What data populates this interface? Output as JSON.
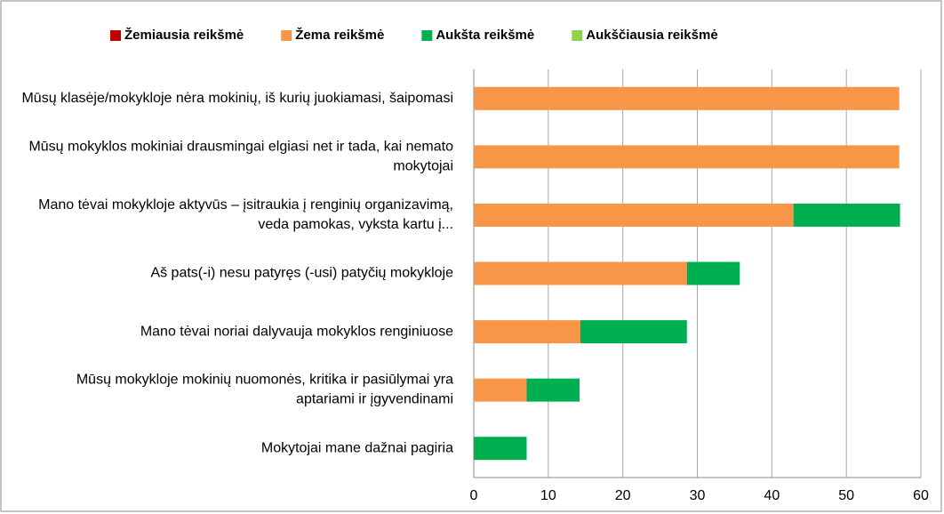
{
  "chart_data": {
    "type": "stacked-barh",
    "categories": [
      "Mūsų klasėje/mokykloje nėra mokinių,  iš kurių juokiamasi, šaipomasi",
      "Mūsų mokyklos mokiniai drausmingai elgiasi net ir tada, kai nemato mokytojai",
      "Mano tėvai mokykloje aktyvūs – įsitraukia į renginių organizavimą, veda pamokas, vyksta kartu į...",
      "Aš pats(-i) nesu patyręs (-usi) patyčių mokykloje",
      "Mano tėvai noriai dalyvauja mokyklos renginiuose",
      "Mūsų mokykloje  mokinių nuomonės, kritika ir pasiūlymai  yra aptariami ir įgyvendinami",
      "Mokytojai mane dažnai pagiria"
    ],
    "series": [
      {
        "name": "Žemiausia reikšmė",
        "color": "#c00000",
        "values": [
          0,
          0,
          0,
          0,
          0,
          0,
          0
        ]
      },
      {
        "name": "Žema reikšmė",
        "color": "#f79646",
        "values": [
          57.1,
          57.1,
          42.9,
          28.6,
          14.3,
          7.1,
          0
        ]
      },
      {
        "name": "Aukšta reikšmė",
        "color": "#00b050",
        "values": [
          0,
          0,
          14.3,
          7.1,
          14.3,
          7.1,
          7.1
        ]
      },
      {
        "name": "Aukščiausia reikšmė",
        "color": "#92d050",
        "values": [
          0,
          0,
          0,
          0,
          0,
          0,
          0
        ]
      }
    ],
    "xlim": [
      0,
      60
    ],
    "xticks": [
      0,
      10,
      20,
      30,
      40,
      50,
      60
    ],
    "grid": true,
    "legend": "top"
  }
}
